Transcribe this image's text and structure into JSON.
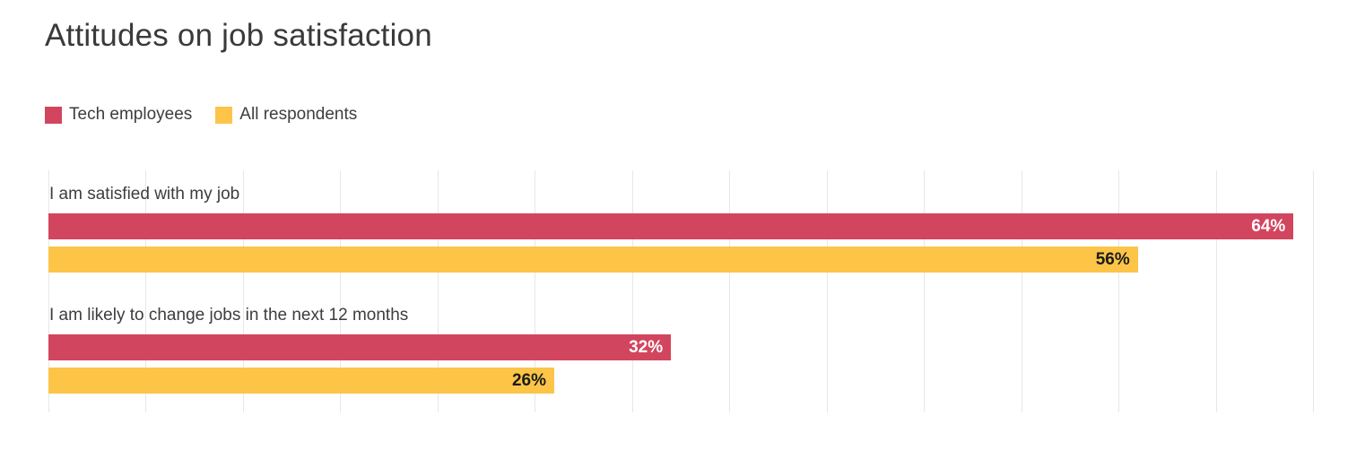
{
  "title": "Attitudes on job satisfaction",
  "colors": {
    "tech_series": "#d2455e",
    "all_series": "#fcc548",
    "gridline": "#e7e7e7",
    "title_text": "#3a3a3a",
    "label_text": "#3d3d3d"
  },
  "chart_data": {
    "type": "bar",
    "orientation": "horizontal",
    "title": "Attitudes on job satisfaction",
    "categories": [
      "I am satisfied with my job",
      "I am likely to change jobs in the next 12 months"
    ],
    "series": [
      {
        "name": "Tech employees",
        "values": [
          64,
          32
        ],
        "color": "#d2455e",
        "value_label_color": "#ffffff"
      },
      {
        "name": "All respondents",
        "values": [
          56,
          26
        ],
        "color": "#fcc548",
        "value_label_color": "#1b1b1b"
      }
    ],
    "value_labels": [
      "64%",
      "56%",
      "32%",
      "26%"
    ],
    "value_suffix": "%",
    "xlabel": "",
    "ylabel": "",
    "xlim": [
      0,
      65
    ],
    "gridline_step": 5,
    "grid": true,
    "legend_position": "top-left"
  }
}
